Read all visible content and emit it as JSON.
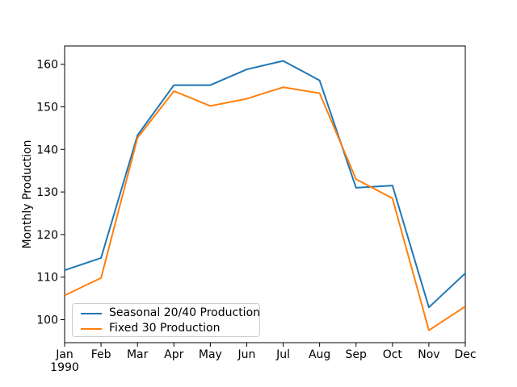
{
  "figure": {
    "background": "#ffffff",
    "text_color": "#000000",
    "axes_edge_color": "#000000",
    "legend_border_color": "#cccccc"
  },
  "chart_data": {
    "type": "line",
    "title": "",
    "xlabel": "",
    "ylabel": "Monthly Production",
    "x_tick_labels": [
      "Jan",
      "Feb",
      "Mar",
      "Apr",
      "May",
      "Jun",
      "Jul",
      "Aug",
      "Sep",
      "Oct",
      "Nov",
      "Dec"
    ],
    "x_year_label": "1990",
    "y_ticks": [
      100,
      110,
      120,
      130,
      140,
      150,
      160
    ],
    "ylim": [
      94.6,
      164.3
    ],
    "grid": false,
    "legend_position": "lower left",
    "series": [
      {
        "name": "Seasonal 20/40 Production",
        "color": "#1f77b4",
        "values": [
          111.6,
          114.5,
          143.3,
          155.1,
          155.1,
          158.8,
          160.8,
          156.2,
          131.0,
          131.5,
          102.9,
          110.9
        ]
      },
      {
        "name": "Fixed 30 Production",
        "color": "#ff7f0e",
        "values": [
          105.7,
          109.8,
          142.7,
          153.7,
          150.2,
          151.9,
          154.6,
          153.2,
          133.0,
          128.5,
          97.5,
          103.1
        ]
      }
    ]
  }
}
